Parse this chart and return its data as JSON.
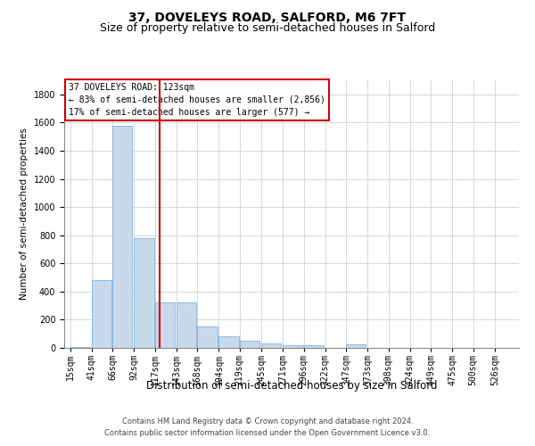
{
  "title": "37, DOVELEYS ROAD, SALFORD, M6 7FT",
  "subtitle": "Size of property relative to semi-detached houses in Salford",
  "xlabel": "Distribution of semi-detached houses by size in Salford",
  "ylabel": "Number of semi-detached properties",
  "footer_line1": "Contains HM Land Registry data © Crown copyright and database right 2024.",
  "footer_line2": "Contains public sector information licensed under the Open Government Licence v3.0.",
  "property_label": "37 DOVELEYS ROAD: 123sqm",
  "annotation_line1": "← 83% of semi-detached houses are smaller (2,856)",
  "annotation_line2": "17% of semi-detached houses are larger (577) →",
  "property_size": 123,
  "categories": [
    "15sqm",
    "41sqm",
    "66sqm",
    "92sqm",
    "117sqm",
    "143sqm",
    "168sqm",
    "194sqm",
    "219sqm",
    "245sqm",
    "271sqm",
    "296sqm",
    "322sqm",
    "347sqm",
    "373sqm",
    "398sqm",
    "424sqm",
    "449sqm",
    "475sqm",
    "500sqm",
    "526sqm"
  ],
  "cat_starts": [
    15,
    41,
    66,
    92,
    117,
    143,
    168,
    194,
    219,
    245,
    271,
    296,
    322,
    347,
    373,
    398,
    424,
    449,
    475,
    500,
    526
  ],
  "values": [
    5,
    480,
    1580,
    780,
    320,
    320,
    155,
    85,
    50,
    30,
    20,
    20,
    0,
    25,
    0,
    0,
    0,
    0,
    0,
    0,
    0
  ],
  "bar_color": "#c9d9ec",
  "bar_edge_color": "#6fa8d0",
  "vline_color": "#cc0000",
  "vline_x": 123,
  "annotation_box_color": "#ffffff",
  "annotation_box_edge": "#cc0000",
  "grid_color": "#d0d8e4",
  "ylim": [
    0,
    1900
  ],
  "yticks": [
    0,
    200,
    400,
    600,
    800,
    1000,
    1200,
    1400,
    1600,
    1800
  ],
  "title_fontsize": 10,
  "subtitle_fontsize": 9,
  "ylabel_fontsize": 7.5,
  "xlabel_fontsize": 8.5,
  "tick_fontsize": 7,
  "annotation_fontsize": 7,
  "footer_fontsize": 6
}
